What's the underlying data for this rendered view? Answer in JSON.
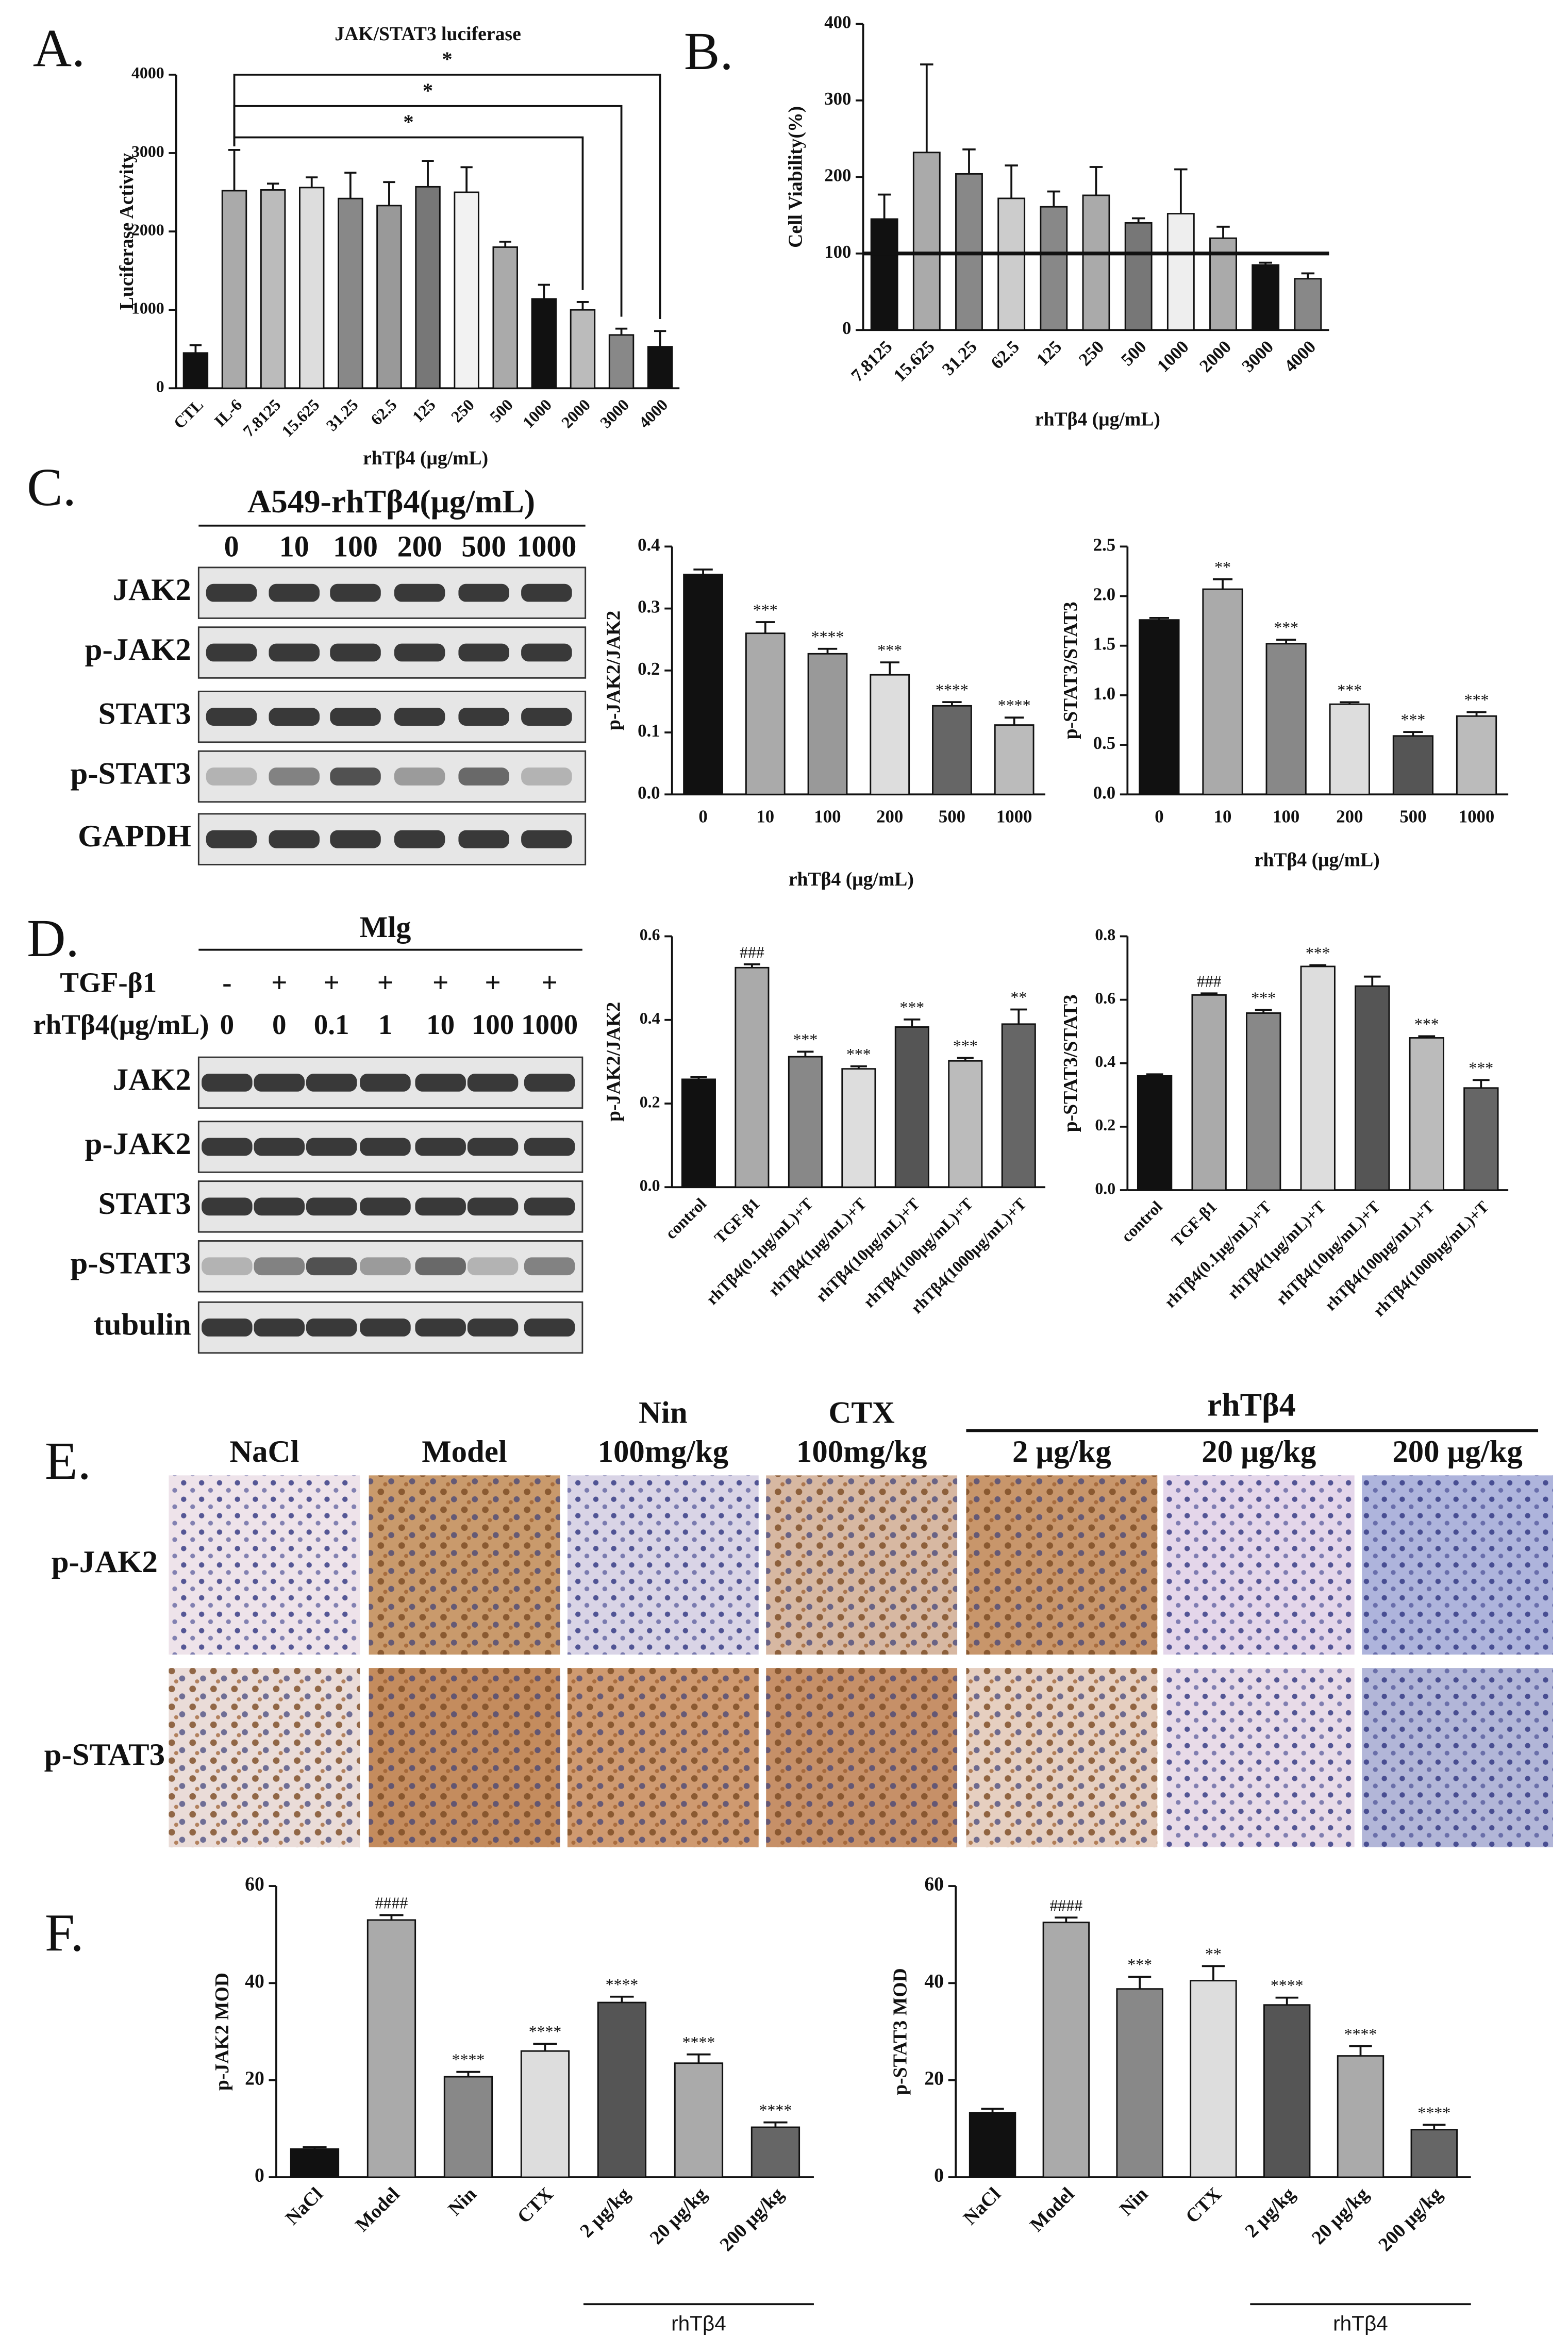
{
  "panels": [
    "A.",
    "B.",
    "C.",
    "D.",
    "E.",
    "F."
  ],
  "chart_data": [
    {
      "type": "bar",
      "title": "JAK/STAT3 luciferase",
      "y_label": "Luciferase Activity",
      "x_label": "rhTβ4 (μg/mL)",
      "categories": [
        "CTL",
        "IL-6",
        "7.8125",
        "15.625",
        "31.25",
        "62.5",
        "125",
        "250",
        "500",
        "1000",
        "2000",
        "3000",
        "4000"
      ],
      "values": [
        450,
        2520,
        2530,
        2560,
        2420,
        2330,
        2570,
        2500,
        1800,
        1140,
        1000,
        680,
        530
      ],
      "errors": [
        100,
        520,
        80,
        130,
        330,
        300,
        330,
        320,
        70,
        180,
        100,
        80,
        200
      ],
      "colors": [
        "#111111",
        "#aaaaaa",
        "#bbbbbb",
        "#dddddd",
        "#888888",
        "#999999",
        "#777777",
        "#f2f2f2",
        "#aaaaaa",
        "#111111",
        "#bbbbbb",
        "#888888",
        "#111111"
      ],
      "ylim": [
        0,
        4000
      ],
      "yticks": [
        0,
        1000,
        2000,
        3000,
        4000
      ],
      "comparisons": [
        {
          "from": "IL-6",
          "to": "4000",
          "label": "*"
        },
        {
          "from": "IL-6",
          "to": "3000",
          "label": "*"
        },
        {
          "from": "IL-6",
          "to": "2000",
          "label": "*"
        }
      ]
    },
    {
      "type": "bar",
      "y_label": "Cell Viability(%)",
      "x_label": "rhTβ4 (μg/mL)",
      "categories": [
        "7.8125",
        "15.625",
        "31.25",
        "62.5",
        "125",
        "250",
        "500",
        "1000",
        "2000",
        "3000",
        "4000"
      ],
      "values": [
        145,
        232,
        204,
        172,
        161,
        176,
        140,
        152,
        120,
        85,
        67
      ],
      "errors": [
        32,
        115,
        32,
        43,
        20,
        37,
        6,
        58,
        15,
        3,
        7
      ],
      "colors": [
        "#111111",
        "#aaaaaa",
        "#888888",
        "#cccccc",
        "#888888",
        "#aaaaaa",
        "#777777",
        "#eeeeee",
        "#aaaaaa",
        "#111111",
        "#888888"
      ],
      "ylim": [
        0,
        400
      ],
      "yticks": [
        0,
        100,
        200,
        300,
        400
      ],
      "reference_line": 100
    },
    {
      "type": "bar",
      "y_label": "p-JAK2/JAK2",
      "x_label": "rhTβ4 (μg/mL)",
      "categories": [
        "0",
        "10",
        "100",
        "200",
        "500",
        "1000"
      ],
      "values": [
        0.355,
        0.26,
        0.227,
        0.193,
        0.143,
        0.112
      ],
      "errors": [
        0.008,
        0.018,
        0.008,
        0.02,
        0.006,
        0.012
      ],
      "significance": [
        null,
        "***",
        "****",
        "***",
        "****",
        "****"
      ],
      "colors": [
        "#111111",
        "#aaaaaa",
        "#999999",
        "#dddddd",
        "#666666",
        "#bbbbbb"
      ],
      "ylim": [
        0,
        0.4
      ],
      "yticks": [
        {
          "value": 0,
          "label": "0.0"
        },
        0.1,
        0.2,
        0.3,
        0.4
      ]
    },
    {
      "type": "bar",
      "y_label": "p-STAT3/STAT3",
      "x_label": "rhTβ4 (μg/mL)",
      "categories": [
        "0",
        "10",
        "100",
        "200",
        "500",
        "1000"
      ],
      "values": [
        1.76,
        2.07,
        1.52,
        0.91,
        0.59,
        0.79
      ],
      "errors": [
        0.02,
        0.1,
        0.04,
        0.02,
        0.04,
        0.04
      ],
      "significance": [
        null,
        "**",
        "***",
        "***",
        "***",
        "***"
      ],
      "colors": [
        "#111111",
        "#aaaaaa",
        "#888888",
        "#dddddd",
        "#555555",
        "#bbbbbb"
      ],
      "ylim": [
        0,
        2.5
      ],
      "yticks": [
        {
          "value": 0,
          "label": "0.0"
        },
        0.5,
        {
          "value": 1,
          "label": "1.0"
        },
        1.5,
        {
          "value": 2,
          "label": "2.0"
        },
        2.5
      ]
    },
    {
      "type": "bar",
      "y_label": "p-JAK2/JAK2",
      "categories": [
        "control",
        "TGF-β1",
        "rhTβ4(0.1μg/mL)+T",
        "rhTβ4(1μg/mL)+T",
        "rhTβ4(10μg/mL)+T",
        "rhTβ4(100μg/mL)+T",
        "rhTβ4(1000μg/mL)+T"
      ],
      "values": [
        0.258,
        0.525,
        0.312,
        0.283,
        0.383,
        0.302,
        0.39
      ],
      "errors": [
        0.005,
        0.008,
        0.012,
        0.006,
        0.018,
        0.007,
        0.035
      ],
      "significance": [
        null,
        "###",
        "***",
        "***",
        "***",
        "***",
        "**"
      ],
      "colors": [
        "#111111",
        "#aaaaaa",
        "#888888",
        "#dddddd",
        "#555555",
        "#bbbbbb",
        "#666666"
      ],
      "ylim": [
        0,
        0.6
      ],
      "yticks": [
        {
          "value": 0,
          "label": "0.0"
        },
        0.2,
        0.4,
        0.6
      ]
    },
    {
      "type": "bar",
      "y_label": "p-STAT3/STAT3",
      "categories": [
        "control",
        "TGF-β1",
        "rhTβ4(0.1μg/mL)+T",
        "rhTβ4(1μg/mL)+T",
        "rhTβ4(10μg/mL)+T",
        "rhTβ4(100μg/mL)+T",
        "rhTβ4(1000μg/mL)+T"
      ],
      "values": [
        0.36,
        0.615,
        0.558,
        0.705,
        0.643,
        0.48,
        0.322
      ],
      "errors": [
        0.005,
        0.005,
        0.01,
        0.004,
        0.03,
        0.005,
        0.025
      ],
      "significance": [
        null,
        "###",
        "***",
        "***",
        null,
        "***",
        "***"
      ],
      "colors": [
        "#111111",
        "#aaaaaa",
        "#888888",
        "#dddddd",
        "#555555",
        "#bbbbbb",
        "#666666"
      ],
      "ylim": [
        0,
        0.8
      ],
      "yticks": [
        {
          "value": 0,
          "label": "0.0"
        },
        0.2,
        0.4,
        0.6,
        0.8
      ]
    },
    {
      "type": "bar",
      "y_label": "p-JAK2 MOD",
      "group_label": "rhTβ4",
      "categories": [
        "NaCl",
        "Model",
        "Nin",
        "CTX",
        "2 μg/kg",
        "20 μg/kg",
        "200 μg/kg"
      ],
      "values": [
        5.8,
        53,
        20.7,
        26,
        36,
        23.5,
        10.3
      ],
      "errors": [
        0.4,
        1,
        1,
        1.5,
        1.2,
        1.8,
        1
      ],
      "significance": [
        null,
        "####",
        "****",
        "****",
        "****",
        "****",
        "****"
      ],
      "colors": [
        "#111111",
        "#aaaaaa",
        "#888888",
        "#dddddd",
        "#555555",
        "#aaaaaa",
        "#666666"
      ],
      "ylim": [
        0,
        60
      ],
      "yticks": [
        0,
        20,
        40,
        60
      ]
    },
    {
      "type": "bar",
      "y_label": "p-STAT3 MOD",
      "group_label": "rhTβ4",
      "categories": [
        "NaCl",
        "Model",
        "Nin",
        "CTX",
        "2 μg/kg",
        "20 μg/kg",
        "200 μg/kg"
      ],
      "values": [
        13.3,
        52.5,
        38.8,
        40.5,
        35.5,
        25,
        9.8
      ],
      "errors": [
        0.8,
        1,
        2.5,
        3,
        1.5,
        2,
        1
      ],
      "significance": [
        null,
        "####",
        "***",
        "**",
        "****",
        "****",
        "****"
      ],
      "colors": [
        "#111111",
        "#aaaaaa",
        "#888888",
        "#dddddd",
        "#555555",
        "#aaaaaa",
        "#666666"
      ],
      "ylim": [
        0,
        60
      ],
      "yticks": [
        0,
        20,
        40,
        60
      ]
    }
  ],
  "blots": {
    "C": {
      "header": "A549-rhTβ4(μg/mL)",
      "lanes": [
        0,
        10,
        100,
        200,
        500,
        1000
      ],
      "rows": [
        "JAK2",
        "p-JAK2",
        "STAT3",
        "p-STAT3",
        "GAPDH"
      ]
    },
    "D": {
      "header": "Mlg",
      "treatments": [
        {
          "label": "TGF-β1",
          "values": [
            "-",
            "+",
            "+",
            "+",
            "+",
            "+",
            "+"
          ]
        },
        {
          "label": "rhTβ4(μg/mL)",
          "values": [
            0,
            0,
            0.1,
            1,
            10,
            100,
            1000
          ]
        }
      ],
      "rows": [
        "JAK2",
        "p-JAK2",
        "STAT3",
        "p-STAT3",
        "tubulin"
      ]
    }
  },
  "ihc": {
    "group_label": "rhTβ4",
    "columns": [
      {
        "label": "NaCl"
      },
      {
        "label": "Model"
      },
      {
        "label": "Nin",
        "dose": "100mg/kg"
      },
      {
        "label": "CTX",
        "dose": "100mg/kg"
      },
      {
        "label": "2 μg/kg"
      },
      {
        "label": "20 μg/kg"
      },
      {
        "label": "200 μg/kg"
      }
    ],
    "rows": [
      "p-JAK2",
      "p-STAT3"
    ]
  }
}
